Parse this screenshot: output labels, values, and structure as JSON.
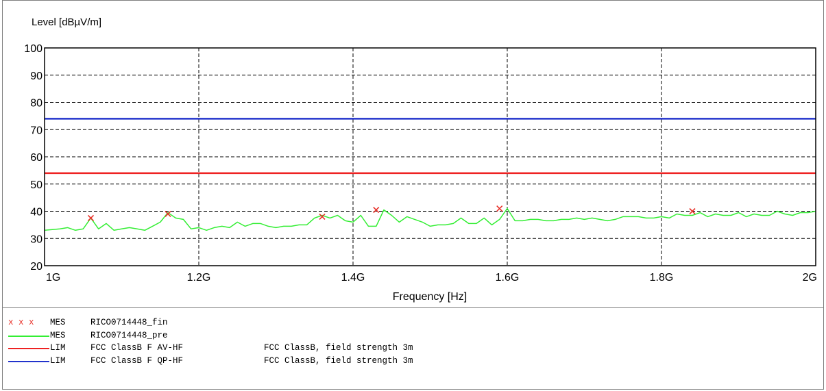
{
  "chart_data": {
    "type": "line",
    "ylabel": "Level [dBµV/m]",
    "xlabel": "Frequency [Hz]",
    "xlim": [
      1000000000,
      2000000000
    ],
    "ylim": [
      20,
      100
    ],
    "x_ticks": [
      {
        "value": 1000000000,
        "label": "1G"
      },
      {
        "value": 1200000000,
        "label": "1.2G"
      },
      {
        "value": 1400000000,
        "label": "1.4G"
      },
      {
        "value": 1600000000,
        "label": "1.6G"
      },
      {
        "value": 1800000000,
        "label": "1.8G"
      },
      {
        "value": 2000000000,
        "label": "2G"
      }
    ],
    "y_ticks": [
      20,
      30,
      40,
      50,
      60,
      70,
      80,
      90,
      100
    ],
    "grid": "dashed",
    "series": [
      {
        "name": "RICO0714448_pre",
        "kind": "line",
        "color": "#33ee33",
        "x": [
          1000000000,
          1020000000,
          1030000000,
          1040000000,
          1050000000,
          1060000000,
          1070000000,
          1080000000,
          1090000000,
          1100000000,
          1110000000,
          1120000000,
          1130000000,
          1140000000,
          1150000000,
          1160000000,
          1170000000,
          1180000000,
          1190000000,
          1200000000,
          1210000000,
          1220000000,
          1230000000,
          1240000000,
          1250000000,
          1260000000,
          1270000000,
          1280000000,
          1290000000,
          1300000000,
          1310000000,
          1320000000,
          1330000000,
          1340000000,
          1350000000,
          1360000000,
          1370000000,
          1380000000,
          1390000000,
          1400000000,
          1410000000,
          1420000000,
          1430000000,
          1440000000,
          1450000000,
          1460000000,
          1470000000,
          1480000000,
          1490000000,
          1500000000,
          1510000000,
          1520000000,
          1530000000,
          1540000000,
          1550000000,
          1560000000,
          1570000000,
          1580000000,
          1590000000,
          1600000000,
          1610000000,
          1620000000,
          1630000000,
          1640000000,
          1650000000,
          1660000000,
          1670000000,
          1680000000,
          1690000000,
          1700000000,
          1710000000,
          1720000000,
          1730000000,
          1740000000,
          1750000000,
          1760000000,
          1770000000,
          1780000000,
          1790000000,
          1800000000,
          1810000000,
          1820000000,
          1830000000,
          1840000000,
          1850000000,
          1860000000,
          1870000000,
          1880000000,
          1890000000,
          1900000000,
          1910000000,
          1920000000,
          1930000000,
          1940000000,
          1950000000,
          1960000000,
          1970000000,
          1980000000,
          1990000000,
          2000000000
        ],
        "y": [
          33,
          33.5,
          34,
          33,
          33.5,
          37.5,
          33.5,
          35.5,
          33,
          33.5,
          34,
          33.5,
          33,
          34.5,
          36,
          39.5,
          37.5,
          37,
          33.5,
          34,
          33,
          34,
          34.5,
          34,
          36,
          34.5,
          35.5,
          35.5,
          34.5,
          34,
          34.5,
          34.5,
          35,
          35,
          37.5,
          38.5,
          37.5,
          38.5,
          36.5,
          36,
          38.5,
          34.5,
          34.5,
          40.5,
          38.5,
          36,
          38,
          37,
          36,
          34.5,
          35,
          35,
          35.5,
          37.5,
          35.5,
          35.5,
          37.5,
          35,
          37,
          41,
          36.5,
          36.5,
          37,
          37,
          36.5,
          36.5,
          37,
          37,
          37.5,
          37,
          37.5,
          37,
          36.5,
          37,
          38,
          38,
          38,
          37.5,
          37.5,
          38,
          37.5,
          39,
          38.5,
          38.5,
          39.5,
          38,
          39,
          38.5,
          38.5,
          39.5,
          38,
          39,
          38.5,
          38.5,
          40,
          39,
          38.5,
          39.5,
          39.5,
          40
        ]
      },
      {
        "name": "RICO0714448_fin",
        "kind": "markers",
        "color": "#e8322a",
        "x": [
          1060000000,
          1160000000,
          1360000000,
          1430000000,
          1590000000,
          1840000000
        ],
        "y": [
          37.5,
          39,
          38,
          40.5,
          41,
          40
        ]
      },
      {
        "name": "FCC ClassB F AV-HF",
        "kind": "hline",
        "color": "#ee2222",
        "y": 54
      },
      {
        "name": "FCC ClassB F QP-HF",
        "kind": "hline",
        "color": "#2233cc",
        "y": 74
      }
    ]
  },
  "legend": [
    {
      "symbol": "markers",
      "marks": "x x x",
      "color": "#e8322a",
      "type": "MES",
      "name": "RICO0714448_fin",
      "desc": ""
    },
    {
      "symbol": "line",
      "color": "#33ee33",
      "type": "MES",
      "name": "RICO0714448_pre",
      "desc": ""
    },
    {
      "symbol": "line",
      "color": "#ee2222",
      "type": "LIM",
      "name": "FCC ClassB F AV-HF",
      "desc": "FCC ClassB, field strength 3m"
    },
    {
      "symbol": "line",
      "color": "#2233cc",
      "type": "LIM",
      "name": "FCC ClassB F QP-HF",
      "desc": "FCC ClassB, field strength 3m"
    }
  ]
}
